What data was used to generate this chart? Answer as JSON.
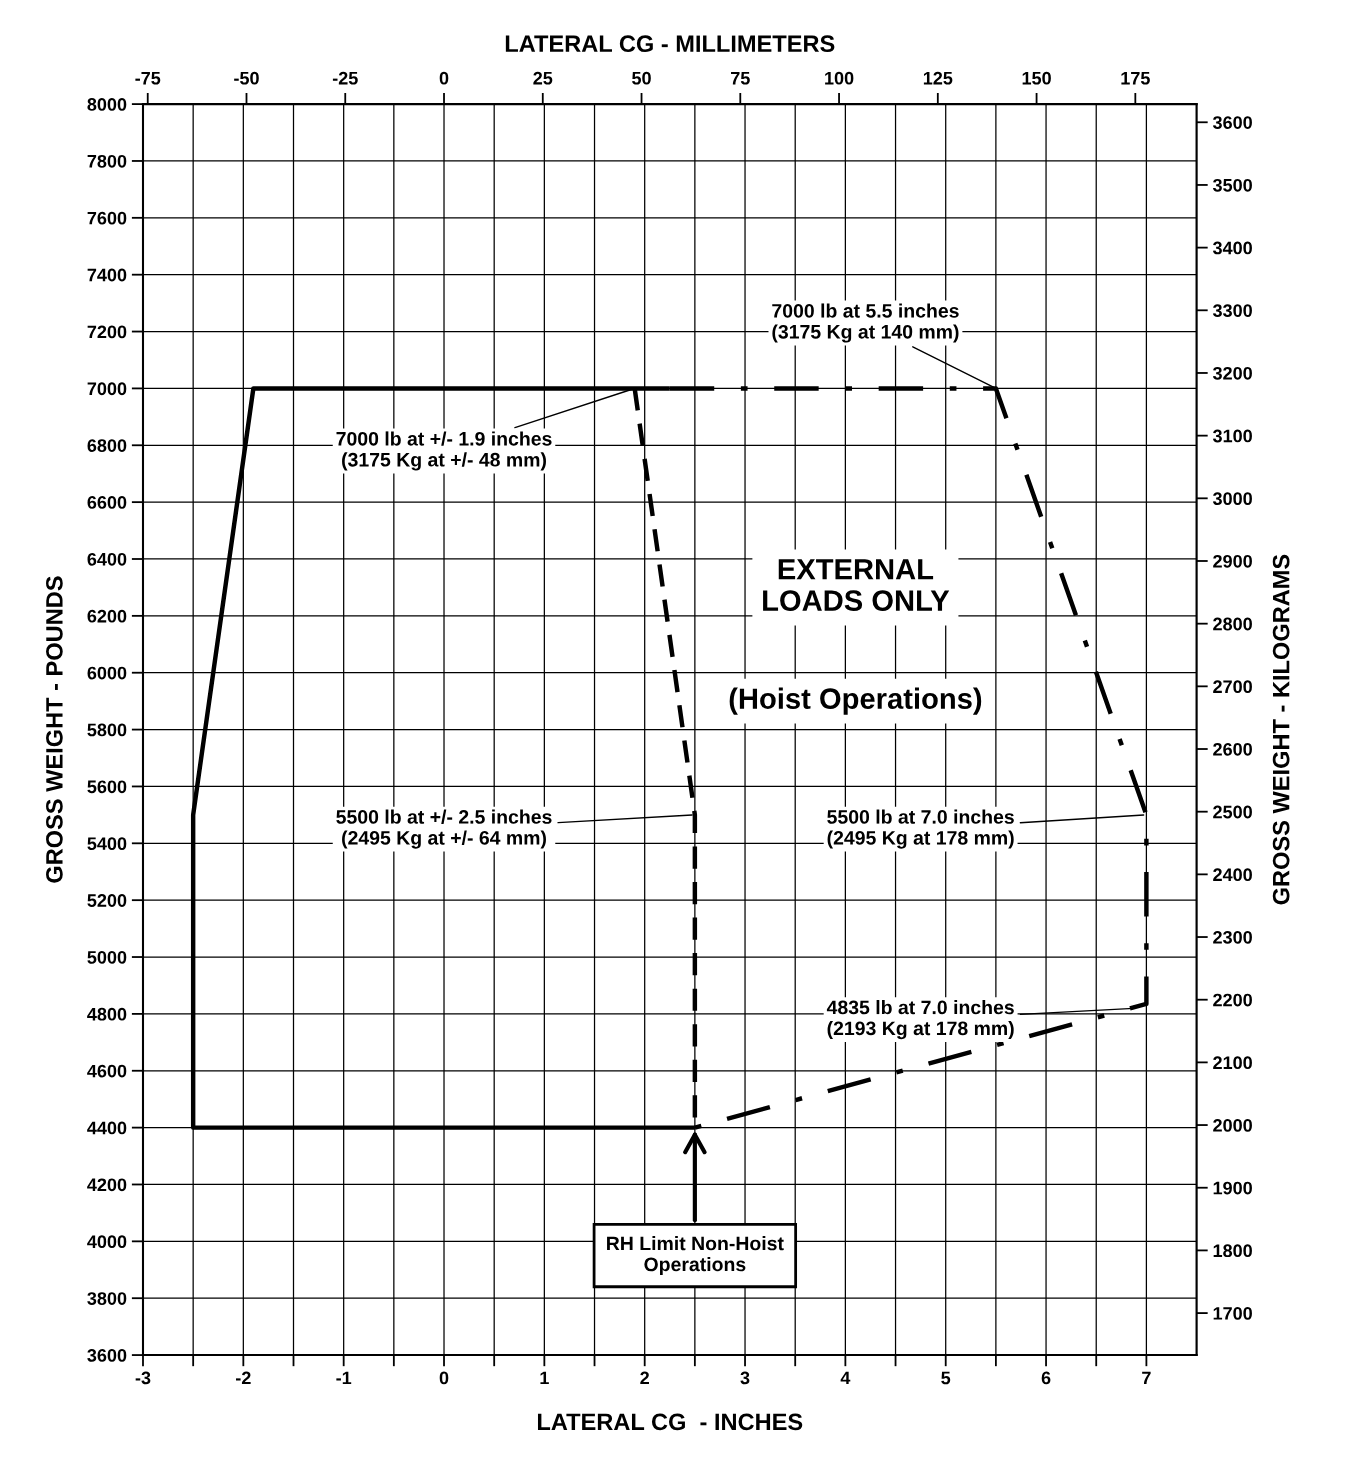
{
  "chart_data": {
    "type": "line",
    "xlabel": "LATERAL CG  - INCHES",
    "ylabel": "GROSS WEIGHT - POUNDS",
    "x2label": "LATERAL CG - MILLIMETERS",
    "y2label": "GROSS WEIGHT - KILOGRAMS",
    "series": [
      {
        "color": "#000000",
        "line_style": "solid",
        "x": [
          2.5,
          -2.5,
          -2.5,
          -1.9,
          2.25
        ],
        "values": [
          4400,
          4400,
          5500,
          7000,
          7000
        ]
      },
      {
        "color": "#000000",
        "line_style": "dashed",
        "x": [
          1.9,
          2.5,
          2.5
        ],
        "values": [
          7000,
          5500,
          4400
        ]
      },
      {
        "color": "#000000",
        "line_style": "dashdot",
        "x": [
          2.25,
          5.5,
          7.0,
          7.0,
          2.5
        ],
        "values": [
          7000,
          7000,
          5500,
          4835,
          4400
        ]
      }
    ],
    "xlim": [
      -3,
      7.5
    ],
    "ylim": [
      3600,
      8000
    ],
    "xticks": [
      -3,
      {
        "value": -2.5,
        "label": null
      },
      -2,
      {
        "value": -1.5,
        "label": null
      },
      -1,
      {
        "value": -0.5,
        "label": null
      },
      0,
      {
        "value": 0.5,
        "label": null
      },
      1,
      {
        "value": 1.5,
        "label": null
      },
      2,
      {
        "value": 2.5,
        "label": null
      },
      3,
      {
        "value": 3.5,
        "label": null
      },
      4,
      {
        "value": 4.5,
        "label": null
      },
      5,
      {
        "value": 5.5,
        "label": null
      },
      6,
      {
        "value": 6.5,
        "label": null
      },
      7
    ],
    "yticks": [
      3600,
      3800,
      4000,
      4200,
      4400,
      4600,
      4800,
      5000,
      5200,
      5400,
      5600,
      5800,
      6000,
      6200,
      6400,
      6600,
      6800,
      7000,
      7200,
      7400,
      7600,
      7800,
      8000
    ],
    "x2lim": [
      -76.2,
      190.5
    ],
    "x2ticks": [
      -75,
      -50,
      -25,
      0,
      25,
      50,
      75,
      100,
      125,
      150,
      175
    ],
    "y2lim": [
      1633,
      3629
    ],
    "y2ticks": [
      1700,
      1800,
      1900,
      2000,
      2100,
      2200,
      2300,
      2400,
      2500,
      2600,
      2700,
      2800,
      2900,
      3000,
      3100,
      3200,
      3300,
      3400,
      3500,
      3600
    ],
    "grid": true,
    "annotations": [
      {
        "text": "7000 lb at 5.5 inches\n(3175 Kg at 140 mm)",
        "x": 5.5,
        "y": 7000
      },
      {
        "text": "7000 lb at +/- 1.9 inches\n(3175 Kg at +/- 48 mm)",
        "x": 1.9,
        "y": 7000
      },
      {
        "text": "5500 lb at +/- 2.5 inches\n(2495 Kg at +/- 64 mm)",
        "x": 2.5,
        "y": 5500
      },
      {
        "text": "5500 lb at 7.0 inches\n(2495 Kg at 178 mm)",
        "x": 7.0,
        "y": 5500
      },
      {
        "text": "4835 lb at 7.0 inches\n(2193 Kg at 178 mm)",
        "x": 6.9,
        "y": 4820
      },
      "EXTERNAL\nLOADS ONLY",
      "(Hoist Operations)",
      {
        "text": "RH Limit Non-Hoist\nOperations",
        "x": 2.5,
        "y": 4400
      }
    ]
  }
}
